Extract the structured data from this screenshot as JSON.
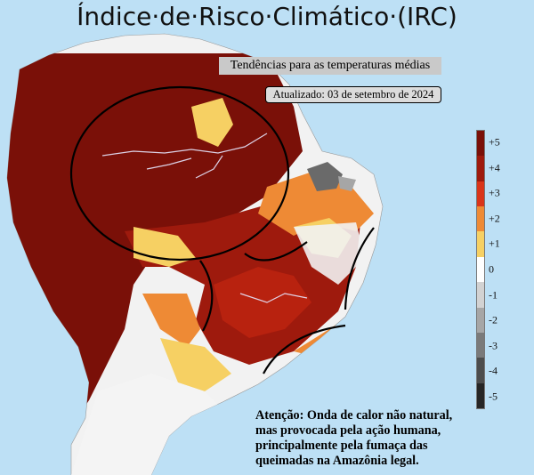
{
  "title": "Índice·de·Risco·Climático·(IRC)",
  "subtitle": "Tendências para as temperaturas médias",
  "updated": "Atualizado: 03 de setembro de 2024",
  "legend": {
    "entries": [
      {
        "label": "+5",
        "color": "#7a1008"
      },
      {
        "label": "+4",
        "color": "#9e1a0d"
      },
      {
        "label": "+3",
        "color": "#d9351a"
      },
      {
        "label": "+2",
        "color": "#ee8a35"
      },
      {
        "label": "+1",
        "color": "#f6d063"
      },
      {
        "label": "0",
        "color": "#ffffff"
      },
      {
        "label": "-1",
        "color": "#d2d2d2"
      },
      {
        "label": "-2",
        "color": "#a6a6a6"
      },
      {
        "label": "-3",
        "color": "#7a7a7a"
      },
      {
        "label": "-4",
        "color": "#4d4d4d"
      },
      {
        "label": "-5",
        "color": "#262626"
      }
    ]
  },
  "note": {
    "line1": "Atenção: Onda de calor não natural,",
    "line2": "mas provocada pela ação humana,",
    "line3": "principalmente pela fumaça das",
    "line4": "queimadas na Amazônia legal."
  },
  "colors": {
    "ocean": "#bde0f5",
    "land_neutral": "#f2f2f2"
  }
}
